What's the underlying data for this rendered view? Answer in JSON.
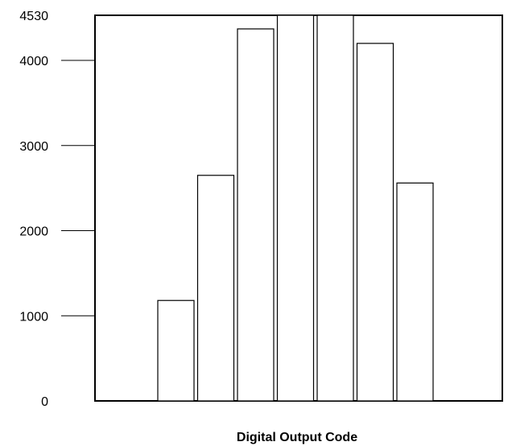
{
  "chart_data": {
    "type": "bar",
    "title": "",
    "xlabel": "Digital Output Code",
    "ylabel": "",
    "ylim": [
      0,
      4530
    ],
    "yticks": [
      0,
      1000,
      2000,
      3000,
      4000,
      4530
    ],
    "ytick_labels": [
      "0",
      "1000",
      "2000",
      "3000",
      "4000",
      "4530"
    ],
    "values": [
      1180,
      2650,
      4370,
      4530,
      4530,
      4200,
      2560
    ],
    "colors": {
      "bar_fill": "#ffffff",
      "bar_stroke": "#000000",
      "axis": "#000000"
    }
  }
}
